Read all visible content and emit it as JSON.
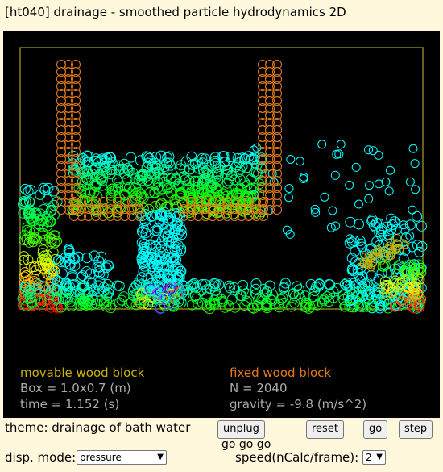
{
  "app": {
    "title": "[ht040] drainage - smoothed particle hydrodynamics 2D"
  },
  "legend": {
    "movable": "movable wood block",
    "fixed": "fixed wood block",
    "box": "Box = 1.0x0.7 (m)",
    "n": "N = 2040",
    "time": "time = 1.152 (s)",
    "gravity": "gravity = -9.8 (m/s^2)"
  },
  "colors": {
    "movable": "#c8b400",
    "fixed": "#e47b1a",
    "info": "#aaaaaa",
    "box_border": "#8a7d2a",
    "particle_low": "#00ffff",
    "particle_high": "#ff0000"
  },
  "controls": {
    "theme": "theme: drainage of bath water",
    "unplug": "unplug",
    "reset": "reset",
    "go": "go",
    "step": "step",
    "status": "go go go",
    "disp_label": "disp. mode:",
    "disp_value": "pressure",
    "speed_label": "speed(nCalc/frame):",
    "speed_value": "2"
  }
}
